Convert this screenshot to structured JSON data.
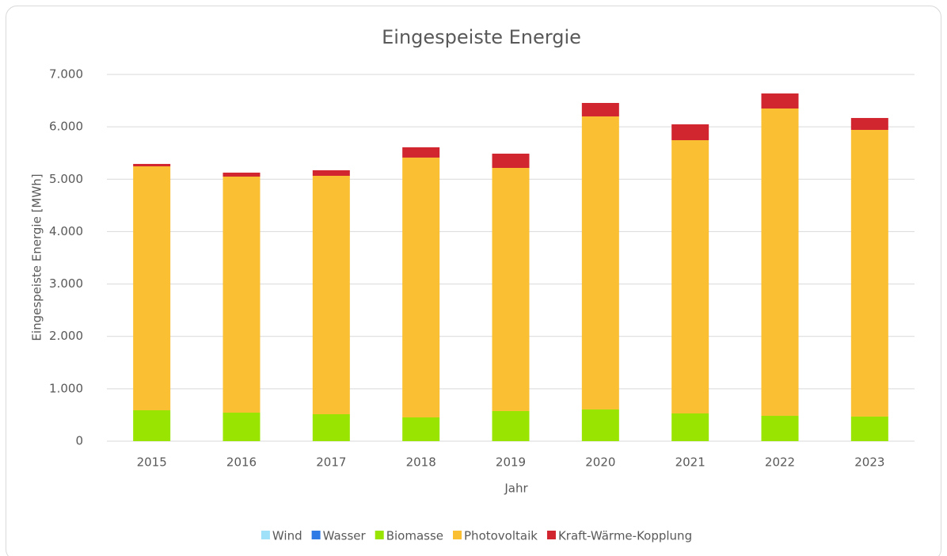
{
  "chart_data": {
    "type": "bar",
    "stacked": true,
    "title": "Eingespeiste Energie",
    "x_label": "Jahr",
    "y_label": "Eingespeiste Energie [MWh]",
    "categories": [
      "2015",
      "2016",
      "2017",
      "2018",
      "2019",
      "2020",
      "2021",
      "2022",
      "2023"
    ],
    "series": [
      {
        "name": "Wind",
        "color": "#9fe1f8",
        "values": [
          0,
          0,
          0,
          0,
          0,
          0,
          0,
          0,
          0
        ]
      },
      {
        "name": "Wasser",
        "color": "#2f7be6",
        "values": [
          0,
          0,
          0,
          0,
          0,
          0,
          0,
          0,
          0
        ]
      },
      {
        "name": "Biomasse",
        "color": "#99e501",
        "values": [
          590,
          544,
          514,
          454,
          575,
          605,
          529,
          484,
          469
        ]
      },
      {
        "name": "Photovoltaik",
        "color": "#fabf33",
        "values": [
          4656,
          4506,
          4551,
          4959,
          4641,
          5594,
          5216,
          5866,
          5473
        ]
      },
      {
        "name": "Kraft-Wärme-Kopplung",
        "color": "#d1262f",
        "values": [
          46,
          76,
          106,
          196,
          272,
          257,
          303,
          287,
          227
        ]
      }
    ],
    "ylim": [
      0,
      7000
    ],
    "yticks": [
      0,
      {
        "value": 1000,
        "label": "1.000"
      },
      {
        "value": 2000,
        "label": "2.000"
      },
      {
        "value": 3000,
        "label": "3.000"
      },
      {
        "value": 4000,
        "label": "4.000"
      },
      {
        "value": 5000,
        "label": "5.000"
      },
      {
        "value": 6000,
        "label": "6.000"
      },
      {
        "value": 7000,
        "label": "7.000"
      }
    ],
    "grid": true,
    "legend": "bottom"
  }
}
